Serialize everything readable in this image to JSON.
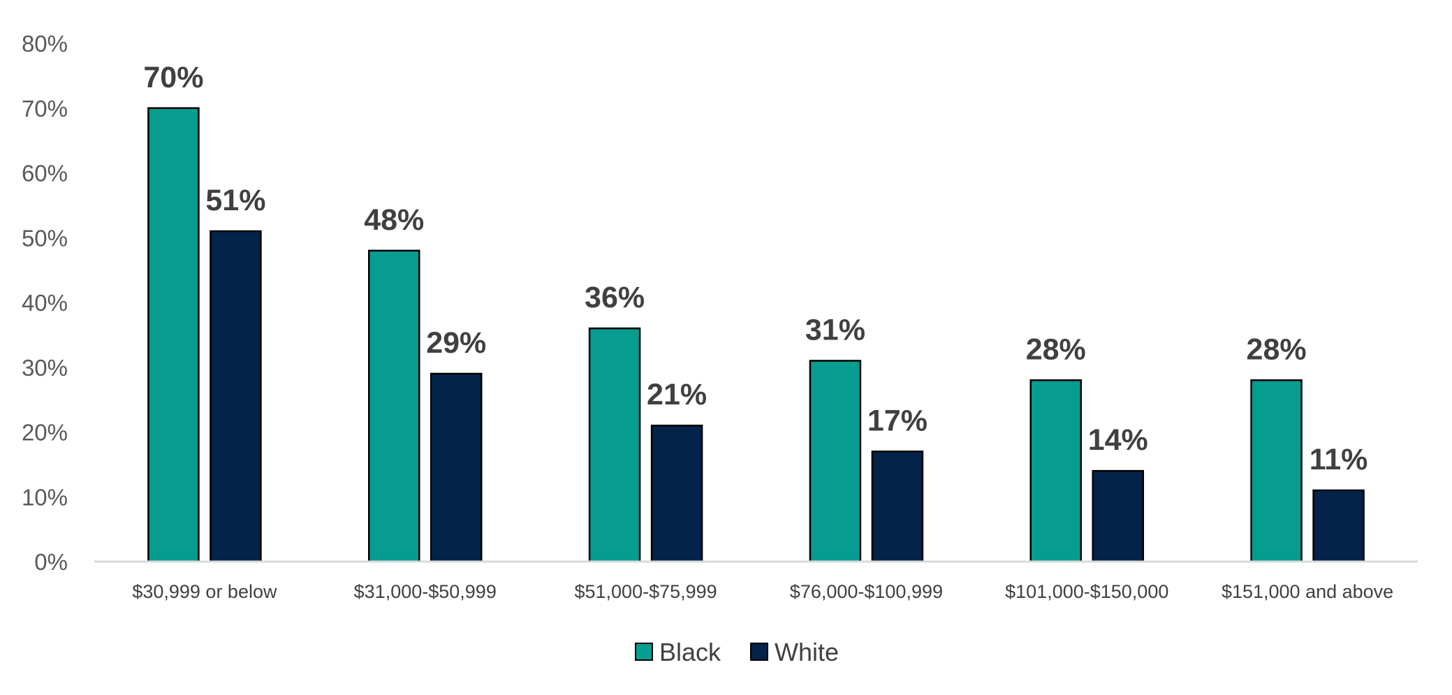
{
  "chart_data": {
    "type": "bar",
    "categories": [
      "$30,999 or below",
      "$31,000-$50,999",
      "$51,000-$75,999",
      "$76,000-$100,999",
      "$101,000-$150,000",
      "$151,000 and above"
    ],
    "series": [
      {
        "name": "Black",
        "values": [
          70,
          48,
          36,
          31,
          28,
          28
        ],
        "labels": [
          "70%",
          "48%",
          "36%",
          "31%",
          "28%",
          "28%"
        ],
        "color": "#069C8F"
      },
      {
        "name": "White",
        "values": [
          51,
          29,
          21,
          17,
          14,
          11
        ],
        "labels": [
          "51%",
          "29%",
          "21%",
          "17%",
          "14%",
          "11%"
        ],
        "color": "#03234B"
      }
    ],
    "ylim": [
      0,
      80
    ],
    "yticks": [
      0,
      10,
      20,
      30,
      40,
      50,
      60,
      70,
      80
    ],
    "ytick_labels": [
      "0%",
      "10%",
      "20%",
      "30%",
      "40%",
      "50%",
      "60%",
      "70%",
      "80%"
    ],
    "grid": false,
    "legend_position": "bottom",
    "title": "",
    "xlabel": "",
    "ylabel": ""
  }
}
